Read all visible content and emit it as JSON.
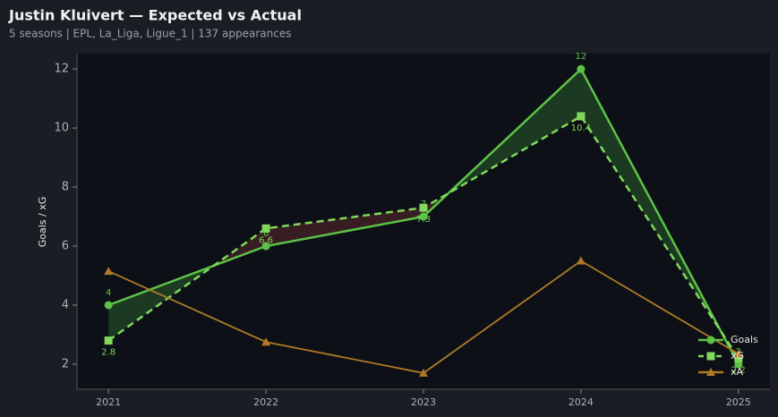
{
  "chart_data": {
    "type": "line",
    "title": "Justin Kluivert — Expected vs Actual",
    "subtitle": "5 seasons | EPL, La_Liga, Ligue_1 | 137 appearances",
    "y_label": "Goals / xG",
    "x": [
      2021,
      2022,
      2023,
      2024,
      2025
    ],
    "xlim": [
      2020.8,
      2025.2
    ],
    "xticks": [
      2021,
      2022,
      2023,
      2024,
      2025
    ],
    "ylim": [
      1.15,
      12.52
    ],
    "yticks": [
      2,
      4,
      6,
      8,
      10,
      12
    ],
    "legend": "lower right",
    "series": [
      {
        "name": "Goals",
        "color": "#5cc247",
        "values": [
          4,
          6,
          7,
          12,
          2
        ],
        "marker": "circle",
        "dash": false,
        "labels": "above"
      },
      {
        "name": "xG",
        "color": "#7fd85c",
        "values": [
          2.8,
          6.6,
          7.3,
          10.4,
          2.2
        ],
        "marker": "square",
        "dash": true,
        "labels": "below"
      },
      {
        "name": "xA",
        "color": "#b07a25",
        "values": [
          5.15,
          2.75,
          1.7,
          5.5,
          2.35
        ],
        "marker": "triangle",
        "dash": false
      }
    ],
    "fill_colors": {
      "over": "#3f9c3f",
      "under": "#9c3f3f"
    }
  }
}
